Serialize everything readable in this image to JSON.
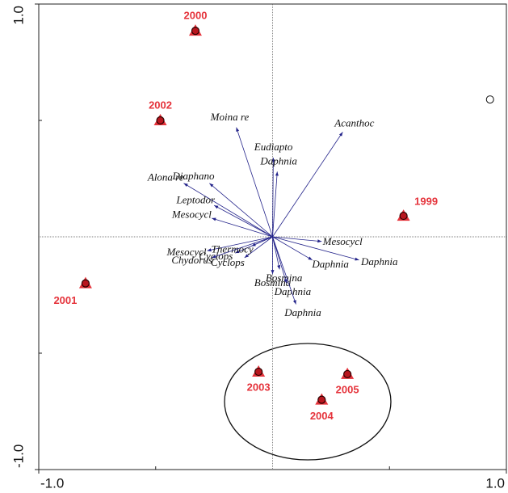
{
  "chart_data": {
    "type": "biplot",
    "xlim": [
      -1,
      1
    ],
    "ylim": [
      -1,
      1
    ],
    "xticks": [
      {
        "value": -1,
        "label": "-1.0"
      },
      {
        "value": 1,
        "label": "1.0"
      }
    ],
    "yticks": [
      {
        "value": -1,
        "label": "-1.0"
      },
      {
        "value": 1,
        "label": "1.0"
      }
    ],
    "xminor": [
      -0.5,
      0.5
    ],
    "yminor": [
      -0.5,
      0.5
    ],
    "samples": {
      "color": "#e5333b",
      "labels": [
        "2000",
        "2002",
        "1999",
        "2001",
        "2003",
        "2005",
        "2004"
      ],
      "x": [
        -0.33,
        -0.48,
        0.56,
        -0.8,
        -0.06,
        0.32,
        0.21
      ],
      "y": [
        0.885,
        0.5,
        0.09,
        -0.2,
        -0.58,
        -0.59,
        -0.7
      ]
    },
    "species": {
      "color": "#23238a",
      "labels": [
        "Moina re",
        "Eudiapto",
        "Daphnia",
        "Acanthoc",
        "Diaphano",
        "Alona re",
        "Leptodor",
        "Mesocycl",
        "Mesocycl",
        "Daphnia",
        "Daphnia",
        "Mesocycl",
        "Cyclops",
        "Cyclops",
        "Thermocy",
        "Chydorus",
        "Bosmina",
        "Bosmina",
        "Daphnia",
        "Daphnia"
      ],
      "x": [
        -0.155,
        0.003,
        0.02,
        0.3,
        -0.27,
        -0.38,
        -0.25,
        -0.26,
        0.21,
        0.37,
        0.17,
        -0.28,
        -0.16,
        -0.12,
        -0.09,
        -0.26,
        0.03,
        0.0,
        0.06,
        0.1
      ],
      "y": [
        0.47,
        0.34,
        0.28,
        0.45,
        0.23,
        0.23,
        0.135,
        0.08,
        -0.02,
        -0.1,
        -0.1,
        -0.06,
        -0.07,
        -0.09,
        -0.04,
        -0.09,
        -0.14,
        -0.16,
        -0.2,
        -0.29
      ]
    },
    "supplementary": {
      "x": [
        0.93
      ],
      "y": [
        0.59
      ]
    }
  }
}
